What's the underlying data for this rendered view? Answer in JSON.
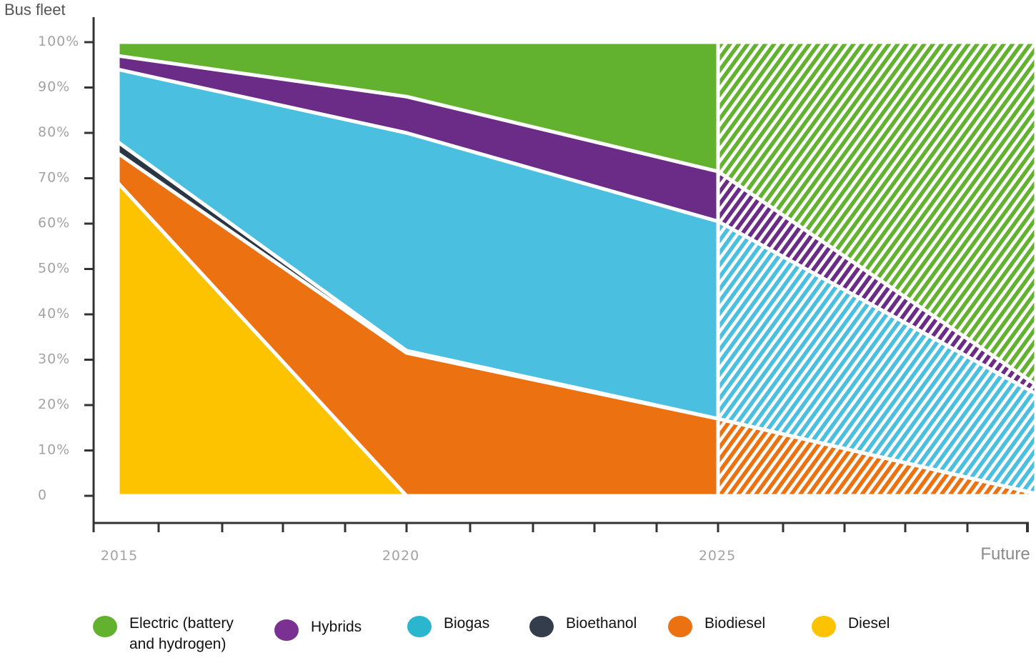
{
  "chart_data": {
    "type": "area",
    "stacked": true,
    "normalized": true,
    "ylabel": "Bus fleet",
    "ylim": [
      0,
      100
    ],
    "y_ticks": [
      {
        "value": 0,
        "label": "0"
      },
      {
        "value": 10,
        "label": "10%"
      },
      {
        "value": 20,
        "label": "20%"
      },
      {
        "value": 30,
        "label": "30%"
      },
      {
        "value": 40,
        "label": "40%"
      },
      {
        "value": 50,
        "label": "50%"
      },
      {
        "value": 60,
        "label": "60%"
      },
      {
        "value": 70,
        "label": "70%"
      },
      {
        "value": 80,
        "label": "80%"
      },
      {
        "value": 90,
        "label": "90%"
      },
      {
        "value": 100,
        "label": "100%"
      }
    ],
    "x": [
      "2015",
      "2020",
      "2025",
      "Future"
    ],
    "x_tick_labels": [
      "2015",
      "2020",
      "2025",
      "Future"
    ],
    "projection_from": "2025",
    "projection_style": "hatched",
    "series": [
      {
        "name": "Diesel",
        "key": "diesel",
        "color": "#fdc300",
        "values": [
          69,
          0,
          0,
          0
        ]
      },
      {
        "name": "Biodiesel",
        "key": "biodiesel",
        "color": "#ec7211",
        "values": [
          6.5,
          31.5,
          17,
          0.5
        ]
      },
      {
        "name": "Bioethanol",
        "key": "bioethanol",
        "color": "#2b3644",
        "values": [
          2.5,
          0.5,
          0,
          0
        ]
      },
      {
        "name": "Biogas",
        "key": "biogas",
        "color": "#4bbfe0",
        "values": [
          16,
          48,
          43.5,
          22
        ]
      },
      {
        "name": "Hybrids",
        "key": "hybrids",
        "color": "#6b2c87",
        "values": [
          3,
          8,
          11,
          2
        ]
      },
      {
        "name": "Electric (battery and hydrogen)",
        "key": "electric",
        "color": "#62b22f",
        "values": [
          3,
          12,
          28.5,
          75.5
        ]
      }
    ],
    "legend": {
      "position": "bottom",
      "items": [
        {
          "label": "Electric (battery\nand hydrogen)",
          "color": "#62b22f"
        },
        {
          "label": "Hybrids",
          "color": "#7b3192"
        },
        {
          "label": "Biogas",
          "color": "#2bb6d0"
        },
        {
          "label": "Bioethanol",
          "color": "#333d4b"
        },
        {
          "label": "Biodiesel",
          "color": "#ec7211"
        },
        {
          "label": "Diesel",
          "color": "#fdc300"
        }
      ]
    }
  }
}
